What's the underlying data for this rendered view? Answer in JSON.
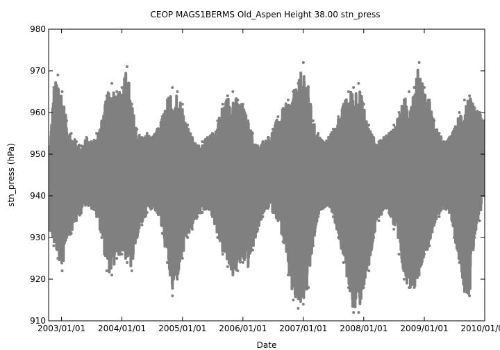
{
  "chart_data": {
    "type": "line",
    "title": "CEOP MAGS1BERMS Old_Aspen Height 38.00 stn_press",
    "xlabel": "Date",
    "ylabel": "stn_press (hPa)",
    "ylim": [
      910,
      980
    ],
    "xlim": [
      "2002-10-15",
      "2010-01-01"
    ],
    "y_ticks": [
      "910",
      "920",
      "930",
      "940",
      "950",
      "960",
      "970",
      "980"
    ],
    "x_ticks": [
      "2003/01/01",
      "2004/01/01",
      "2005/01/01",
      "2006/01/01",
      "2007/01/01",
      "2008/01/01",
      "2009/01/01",
      "2010/01/01"
    ],
    "grid": false,
    "legend": "none",
    "series_color": "#808080",
    "series": [
      {
        "x": [
          "2002-10-20",
          "2002-11-15",
          "2002-12-10",
          "2003-01-05",
          "2003-02-01",
          "2003-03-01",
          "2003-04-01",
          "2003-05-01",
          "2003-06-01",
          "2003-07-01",
          "2003-08-01",
          "2003-09-01",
          "2003-10-01",
          "2003-11-01",
          "2003-12-01",
          "2004-01-01",
          "2004-02-01",
          "2004-03-01",
          "2004-04-01",
          "2004-05-01",
          "2004-06-01",
          "2004-07-01",
          "2004-08-01",
          "2004-09-01",
          "2004-10-01",
          "2004-11-01",
          "2004-12-01",
          "2005-01-01",
          "2005-02-01",
          "2005-03-01",
          "2005-04-01",
          "2005-05-01",
          "2005-06-01",
          "2005-07-01",
          "2005-08-01",
          "2005-09-01",
          "2005-10-01",
          "2005-11-01",
          "2005-12-01",
          "2006-01-01",
          "2006-02-01",
          "2006-03-01",
          "2006-04-01",
          "2006-05-01",
          "2006-06-01",
          "2006-07-01",
          "2006-08-01",
          "2006-09-01",
          "2006-10-01",
          "2006-11-01",
          "2006-12-01",
          "2007-01-01",
          "2007-02-01",
          "2007-03-01",
          "2007-04-01",
          "2007-05-01",
          "2007-06-01",
          "2007-07-01",
          "2007-08-01",
          "2007-09-01",
          "2007-10-01",
          "2007-11-01",
          "2007-12-01",
          "2008-01-01",
          "2008-02-01",
          "2008-03-01",
          "2008-04-01",
          "2008-05-01",
          "2008-06-01",
          "2008-07-01",
          "2008-08-01",
          "2008-09-01",
          "2008-10-01",
          "2008-11-01",
          "2008-12-01",
          "2009-01-01",
          "2009-02-01",
          "2009-03-01",
          "2009-04-01",
          "2009-05-01",
          "2009-06-01",
          "2009-07-01",
          "2009-08-01",
          "2009-09-01",
          "2009-10-01",
          "2009-11-01",
          "2009-12-01",
          "2009-12-28"
        ],
        "min": [
          932,
          928,
          925,
          922,
          930,
          931,
          934,
          936,
          938,
          937,
          935,
          930,
          922,
          921,
          925,
          926,
          924,
          922,
          930,
          933,
          936,
          937,
          936,
          931,
          924,
          916,
          920,
          925,
          930,
          932,
          935,
          936,
          937,
          935,
          930,
          926,
          923,
          921,
          922,
          924,
          923,
          927,
          932,
          935,
          937,
          936,
          934,
          929,
          921,
          915,
          913,
          914,
          918,
          928,
          935,
          937,
          938,
          935,
          930,
          924,
          918,
          912,
          912,
          918,
          922,
          930,
          934,
          937,
          936,
          932,
          926,
          920,
          918,
          918,
          921,
          926,
          928,
          933,
          935,
          937,
          936,
          930,
          924,
          917,
          916,
          930,
          934,
          940
        ],
        "max": [
          951,
          966,
          969,
          965,
          958,
          955,
          953,
          952,
          954,
          953,
          955,
          958,
          964,
          967,
          965,
          966,
          971,
          962,
          956,
          954,
          955,
          954,
          956,
          959,
          963,
          966,
          965,
          962,
          957,
          954,
          952,
          953,
          954,
          955,
          958,
          962,
          964,
          965,
          963,
          962,
          958,
          955,
          952,
          953,
          954,
          956,
          959,
          961,
          963,
          965,
          967,
          972,
          966,
          958,
          955,
          953,
          954,
          956,
          959,
          962,
          965,
          966,
          967,
          962,
          957,
          954,
          953,
          954,
          955,
          957,
          960,
          963,
          965,
          966,
          972,
          966,
          963,
          958,
          955,
          953,
          954,
          956,
          960,
          963,
          964,
          961,
          960,
          958
        ]
      }
    ]
  }
}
